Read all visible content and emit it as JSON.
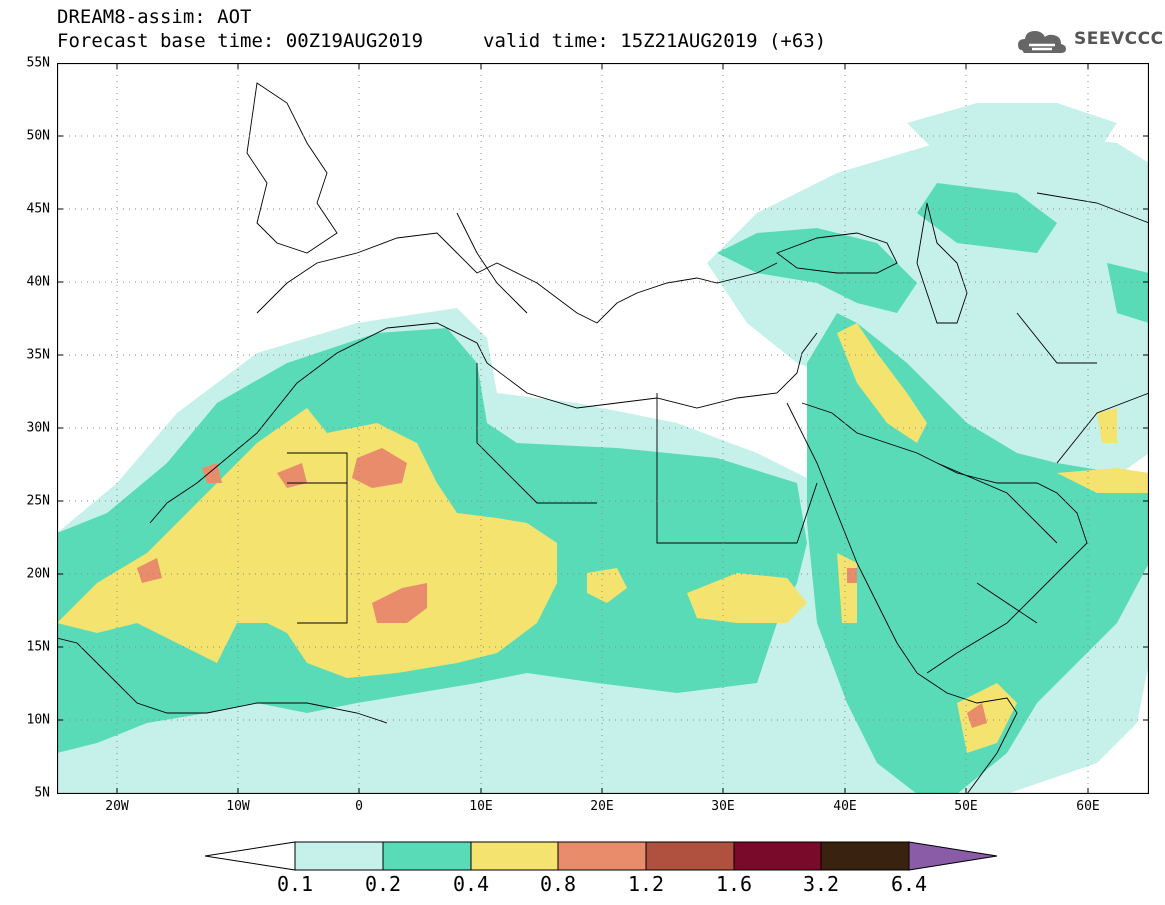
{
  "title": {
    "line1": "DREAM8-assim: AOT",
    "line2": "Forecast base time: 00Z19AUG2019",
    "valid": "valid time: 15Z21AUG2019 (+63)"
  },
  "logo": {
    "text": "SEEVCCC",
    "icon": "cloud-icon"
  },
  "axes": {
    "lat_labels": [
      "55N",
      "50N",
      "45N",
      "40N",
      "35N",
      "30N",
      "25N",
      "20N",
      "15N",
      "10N",
      "5N"
    ],
    "lon_labels": [
      "20W",
      "10W",
      "0",
      "10E",
      "20E",
      "30E",
      "40E",
      "50E",
      "60E"
    ],
    "lon_range": [
      -25,
      65
    ],
    "lat_range": [
      5,
      55
    ],
    "grid": "dotted"
  },
  "colorbar": {
    "labels": [
      "0.1",
      "0.2",
      "0.4",
      "0.8",
      "1.2",
      "1.6",
      "3.2",
      "6.4"
    ],
    "colors": [
      "#ffffff",
      "#c6f1ea",
      "#5adbb8",
      "#f4e36e",
      "#e88c6b",
      "#b0503e",
      "#7a0a2a",
      "#3a2210",
      "#8a5ca8"
    ]
  },
  "colors": {
    "lvl1": "#c6f1ea",
    "lvl2": "#5adbb8",
    "lvl3": "#f4e36e",
    "lvl4": "#e88c6b"
  }
}
